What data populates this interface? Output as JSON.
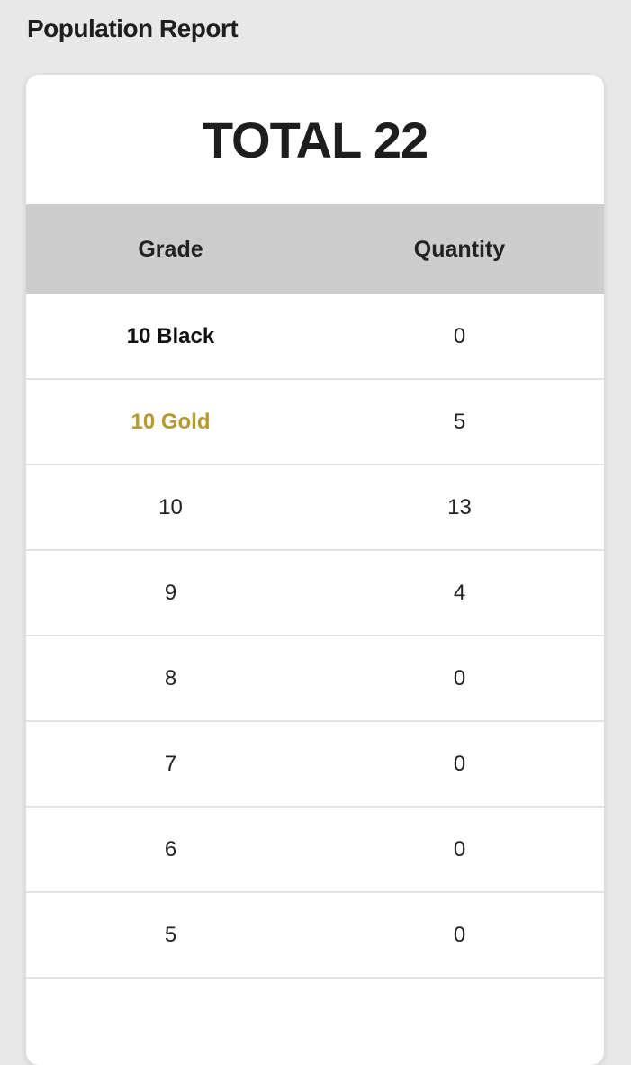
{
  "page": {
    "title": "Population Report"
  },
  "report": {
    "total_label": "TOTAL 22",
    "columns": [
      "Grade",
      "Quantity"
    ],
    "rows": [
      {
        "grade": "10 Black",
        "quantity": "0",
        "style": "bold",
        "color": "#111111"
      },
      {
        "grade": "10 Gold",
        "quantity": "5",
        "style": "bold",
        "color": "#b59a2e"
      },
      {
        "grade": "10",
        "quantity": "13"
      },
      {
        "grade": "9",
        "quantity": "4"
      },
      {
        "grade": "8",
        "quantity": "0"
      },
      {
        "grade": "7",
        "quantity": "0"
      },
      {
        "grade": "6",
        "quantity": "0"
      },
      {
        "grade": "5",
        "quantity": "0"
      }
    ]
  }
}
